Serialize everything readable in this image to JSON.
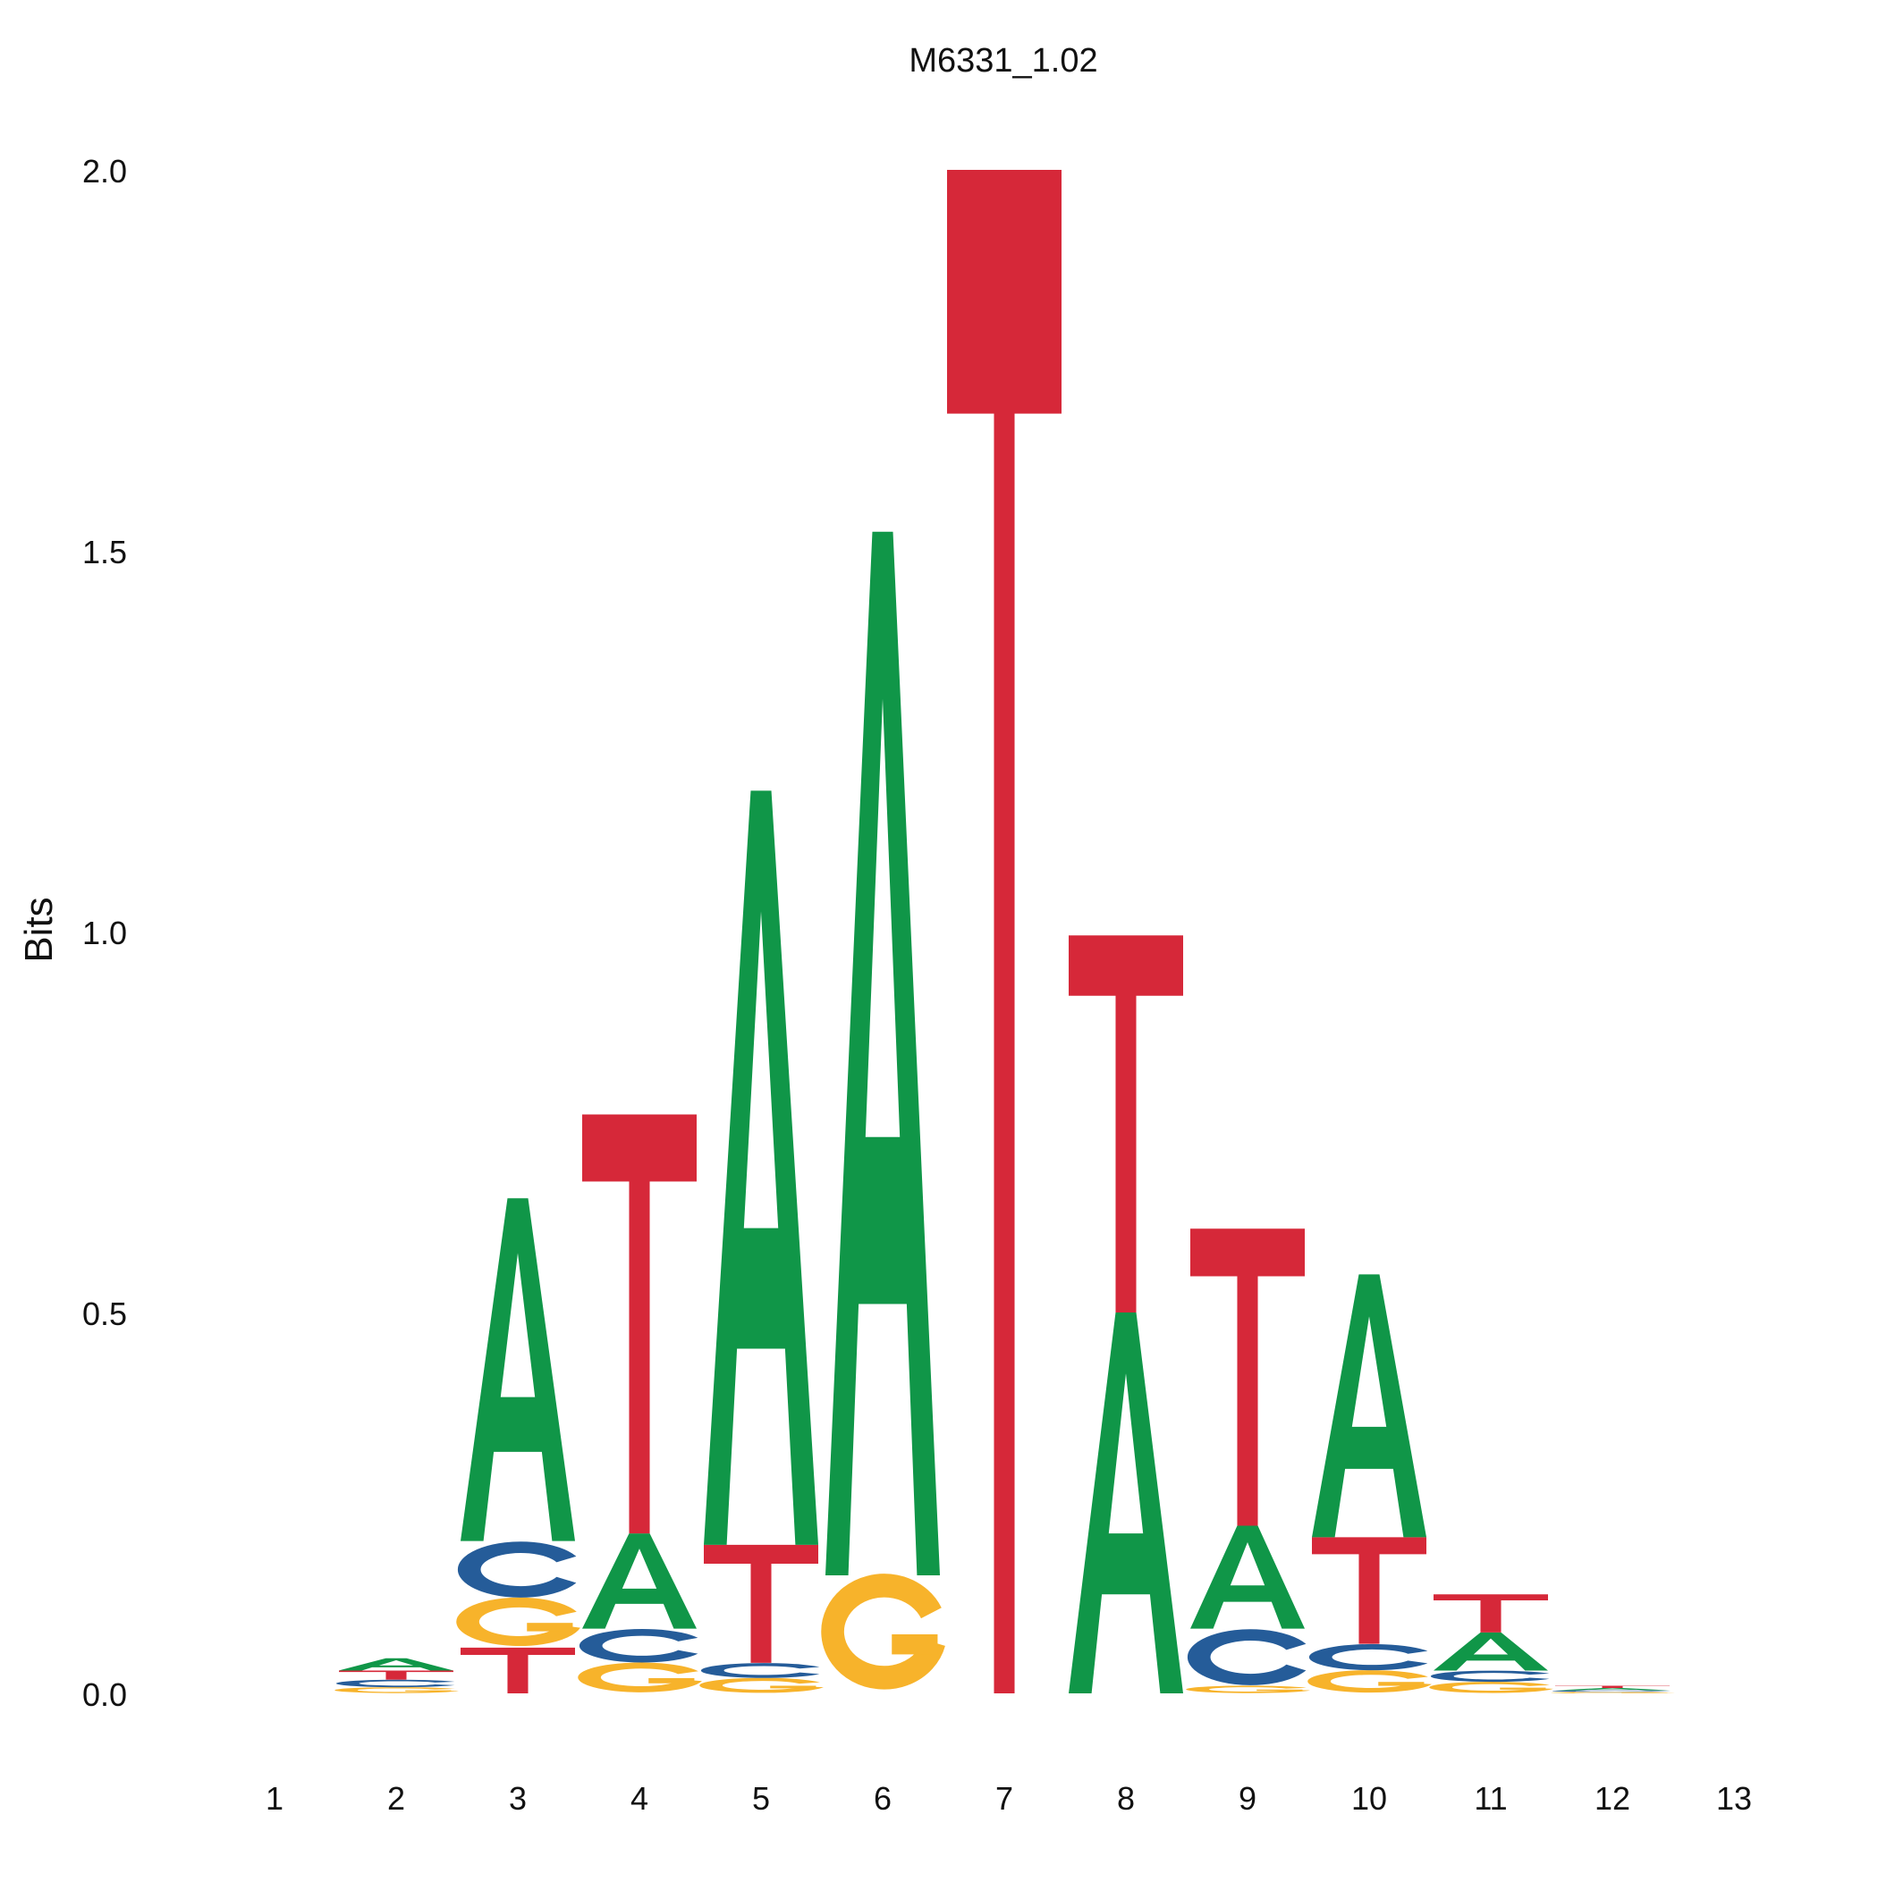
{
  "chart_data": {
    "type": "sequence-logo",
    "title": "M6331_1.02",
    "ylabel": "Bits",
    "xlabel": "",
    "ylim": [
      0,
      2.0
    ],
    "yticks": [
      "0.0",
      "0.5",
      "1.0",
      "1.5",
      "2.0"
    ],
    "ytick_values": [
      0,
      0.5,
      1.0,
      1.5,
      2.0
    ],
    "positions": [
      "1",
      "2",
      "3",
      "4",
      "5",
      "6",
      "7",
      "8",
      "9",
      "10",
      "11",
      "12",
      "13"
    ],
    "colors": {
      "A": "#109648",
      "C": "#255C99",
      "G": "#F7B32B",
      "T": "#D62839"
    },
    "columns": [
      [],
      [
        {
          "base": "G",
          "bits": 0.008
        },
        {
          "base": "C",
          "bits": 0.01
        },
        {
          "base": "T",
          "bits": 0.012
        },
        {
          "base": "A",
          "bits": 0.016
        }
      ],
      [
        {
          "base": "T",
          "bits": 0.06
        },
        {
          "base": "G",
          "bits": 0.065
        },
        {
          "base": "C",
          "bits": 0.075
        },
        {
          "base": "A",
          "bits": 0.45
        }
      ],
      [
        {
          "base": "G",
          "bits": 0.04
        },
        {
          "base": "C",
          "bits": 0.045
        },
        {
          "base": "A",
          "bits": 0.125
        },
        {
          "base": "T",
          "bits": 0.55
        }
      ],
      [
        {
          "base": "G",
          "bits": 0.02
        },
        {
          "base": "C",
          "bits": 0.02
        },
        {
          "base": "T",
          "bits": 0.155
        },
        {
          "base": "A",
          "bits": 0.99
        }
      ],
      [
        {
          "base": "G",
          "bits": 0.155
        },
        {
          "base": "A",
          "bits": 1.37
        }
      ],
      [
        {
          "base": "T",
          "bits": 2.0
        }
      ],
      [
        {
          "base": "A",
          "bits": 0.5
        },
        {
          "base": "T",
          "bits": 0.495
        }
      ],
      [
        {
          "base": "G",
          "bits": 0.01
        },
        {
          "base": "C",
          "bits": 0.075
        },
        {
          "base": "A",
          "bits": 0.135
        },
        {
          "base": "T",
          "bits": 0.39
        }
      ],
      [
        {
          "base": "G",
          "bits": 0.03
        },
        {
          "base": "C",
          "bits": 0.035
        },
        {
          "base": "T",
          "bits": 0.14
        },
        {
          "base": "A",
          "bits": 0.345
        }
      ],
      [
        {
          "base": "G",
          "bits": 0.015
        },
        {
          "base": "C",
          "bits": 0.015
        },
        {
          "base": "A",
          "bits": 0.05
        },
        {
          "base": "T",
          "bits": 0.05
        }
      ],
      [
        {
          "base": "G",
          "bits": 0.002
        },
        {
          "base": "C",
          "bits": 0.002
        },
        {
          "base": "A",
          "bits": 0.003
        },
        {
          "base": "T",
          "bits": 0.003
        }
      ],
      []
    ]
  }
}
